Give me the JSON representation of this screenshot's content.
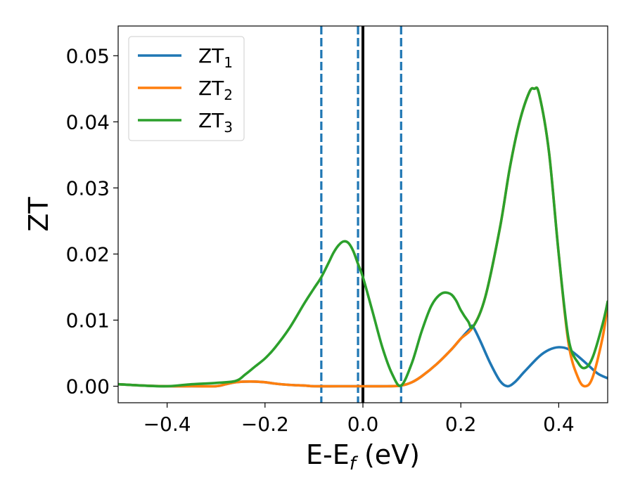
{
  "chart_data": {
    "type": "line",
    "title": "",
    "xlabel": {
      "base": "E-E",
      "subscript": "f",
      "suffix": " (eV)"
    },
    "ylabel": "ZT",
    "xlim": [
      -0.5,
      0.5
    ],
    "ylim": [
      -0.0025,
      0.0545
    ],
    "xticks": [
      -0.4,
      -0.2,
      0.0,
      0.2,
      0.4
    ],
    "xtick_labels": [
      "−0.4",
      "−0.2",
      "0.0",
      "0.2",
      "0.4"
    ],
    "yticks": [
      0.0,
      0.01,
      0.02,
      0.03,
      0.04,
      0.05
    ],
    "ytick_labels": [
      "0.00",
      "0.01",
      "0.02",
      "0.03",
      "0.04",
      "0.05"
    ],
    "legend_position": "top-left",
    "grid": false,
    "vlines": [
      {
        "x": -0.085,
        "style": "dashed",
        "color": "#1f77b4"
      },
      {
        "x": -0.01,
        "style": "dashed",
        "color": "#1f77b4"
      },
      {
        "x": 0.0,
        "style": "solid",
        "color": "#000000"
      },
      {
        "x": 0.078,
        "style": "dashed",
        "color": "#1f77b4"
      }
    ],
    "series": [
      {
        "name": "ZT1",
        "label_base": "ZT",
        "label_sub": "1",
        "color": "#1f77b4",
        "x": [
          -0.5,
          -0.45,
          -0.4,
          -0.35,
          -0.3,
          -0.28,
          -0.26,
          -0.24,
          -0.22,
          -0.2,
          -0.18,
          -0.15,
          -0.12,
          -0.1,
          -0.05,
          0.0,
          0.05,
          0.078,
          0.1,
          0.12,
          0.15,
          0.18,
          0.2,
          0.22,
          0.225,
          0.24,
          0.26,
          0.28,
          0.295,
          0.31,
          0.33,
          0.36,
          0.38,
          0.4,
          0.42,
          0.44,
          0.46,
          0.48,
          0.5
        ],
        "y": [
          0.0003,
          0.0001,
          0.0,
          0.0,
          0.0,
          0.0003,
          0.0006,
          0.0007,
          0.0007,
          0.0006,
          0.0004,
          0.0002,
          0.0001,
          0.0,
          0.0,
          0.0,
          0.0,
          0.0001,
          0.0006,
          0.0015,
          0.0033,
          0.0055,
          0.0072,
          0.0088,
          0.009,
          0.0068,
          0.0035,
          0.0008,
          0.0,
          0.0006,
          0.0022,
          0.0045,
          0.0055,
          0.0059,
          0.0056,
          0.0045,
          0.0032,
          0.0019,
          0.0012
        ]
      },
      {
        "name": "ZT2",
        "label_base": "ZT",
        "label_sub": "2",
        "color": "#ff7f0e",
        "x": [
          -0.5,
          -0.45,
          -0.4,
          -0.35,
          -0.3,
          -0.28,
          -0.26,
          -0.24,
          -0.22,
          -0.2,
          -0.18,
          -0.15,
          -0.12,
          -0.1,
          -0.05,
          0.0,
          0.05,
          0.078,
          0.1,
          0.12,
          0.15,
          0.18,
          0.2,
          0.225,
          0.25,
          0.28,
          0.3,
          0.32,
          0.34,
          0.35,
          0.36,
          0.38,
          0.4,
          0.42,
          0.44,
          0.455,
          0.47,
          0.49,
          0.5
        ],
        "y": [
          0.0003,
          0.0001,
          0.0,
          0.0,
          0.0,
          0.0003,
          0.0006,
          0.0007,
          0.0007,
          0.0006,
          0.0004,
          0.0002,
          0.0001,
          0.0,
          0.0,
          0.0,
          0.0,
          0.0001,
          0.0006,
          0.0015,
          0.0033,
          0.0055,
          0.0072,
          0.009,
          0.0135,
          0.024,
          0.033,
          0.04,
          0.0445,
          0.045,
          0.0442,
          0.0355,
          0.02,
          0.0065,
          0.0012,
          0.0,
          0.0015,
          0.0075,
          0.0125
        ]
      },
      {
        "name": "ZT3",
        "label_base": "ZT",
        "label_sub": "3",
        "color": "#2ca02c",
        "x": [
          -0.5,
          -0.45,
          -0.4,
          -0.35,
          -0.3,
          -0.26,
          -0.24,
          -0.22,
          -0.2,
          -0.18,
          -0.15,
          -0.12,
          -0.1,
          -0.085,
          -0.07,
          -0.06,
          -0.05,
          -0.04,
          -0.03,
          -0.02,
          -0.01,
          0.0,
          0.02,
          0.04,
          0.06,
          0.078,
          0.1,
          0.12,
          0.14,
          0.16,
          0.178,
          0.19,
          0.2,
          0.215,
          0.225,
          0.25,
          0.28,
          0.3,
          0.32,
          0.34,
          0.35,
          0.36,
          0.38,
          0.4,
          0.42,
          0.44,
          0.455,
          0.47,
          0.49,
          0.5
        ],
        "y": [
          0.0003,
          0.0001,
          0.0,
          0.0003,
          0.0005,
          0.0008,
          0.0018,
          0.003,
          0.0042,
          0.0058,
          0.0088,
          0.0125,
          0.0148,
          0.0165,
          0.0187,
          0.0202,
          0.0213,
          0.0219,
          0.0217,
          0.0205,
          0.0185,
          0.0165,
          0.0112,
          0.0058,
          0.0018,
          0.0001,
          0.0035,
          0.0083,
          0.0122,
          0.014,
          0.014,
          0.013,
          0.0115,
          0.0098,
          0.009,
          0.0135,
          0.024,
          0.033,
          0.04,
          0.0445,
          0.045,
          0.0442,
          0.0355,
          0.02,
          0.0072,
          0.0035,
          0.0028,
          0.0045,
          0.0095,
          0.0128
        ]
      }
    ]
  }
}
